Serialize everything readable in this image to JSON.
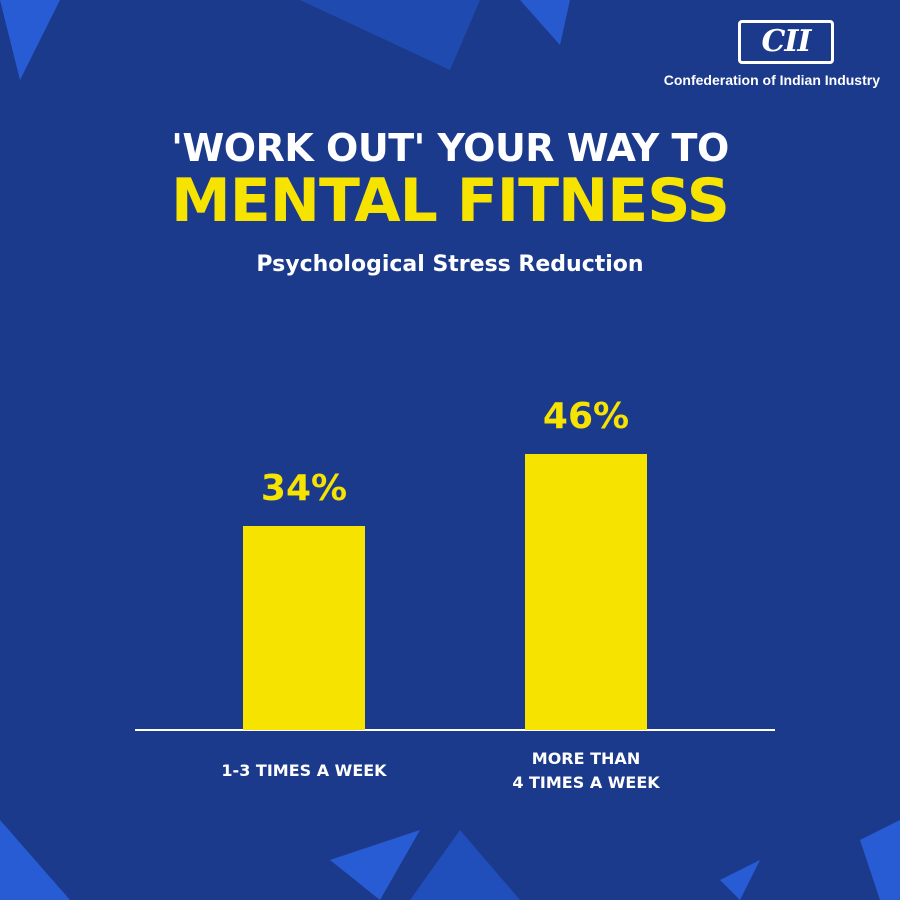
{
  "logo": {
    "mark": "CII",
    "org_name": "Confederation of Indian Industry"
  },
  "title": {
    "line1": "'WORK OUT' YOUR WAY TO",
    "line2": "MENTAL FITNESS"
  },
  "colors": {
    "background": "#1b3a8c",
    "bar": "#f7e300",
    "accent_shapes": "#2a63e0",
    "text": "#ffffff"
  },
  "chart_data": {
    "type": "bar",
    "title": "Psychological Stress Reduction",
    "categories": [
      "1-3 TIMES A WEEK",
      "MORE THAN\n4 TIMES A WEEK"
    ],
    "values": [
      34,
      46
    ],
    "data_labels": [
      "34%",
      "46%"
    ],
    "ylim": [
      0,
      100
    ],
    "grid": false,
    "xlabel": "",
    "ylabel": ""
  }
}
